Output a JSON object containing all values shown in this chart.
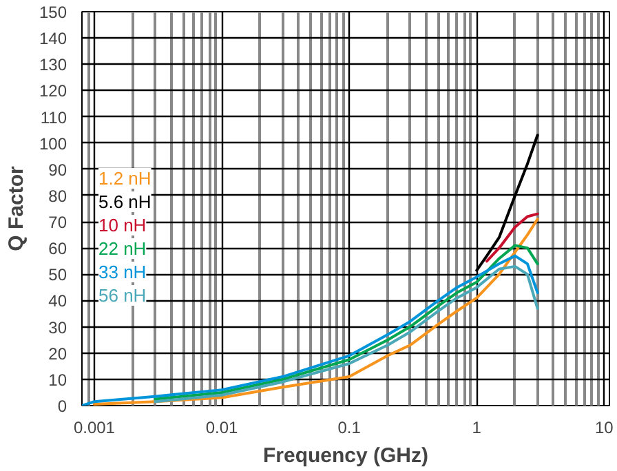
{
  "chart_data": {
    "type": "line",
    "xlabel": "Frequency (GHz)",
    "ylabel": "Q Factor",
    "log": "x",
    "grid": true,
    "legend": "left",
    "xlim": [
      0.0008,
      11
    ],
    "ylim": [
      0,
      150
    ],
    "xticks": [
      0.001,
      0.01,
      0.1,
      1,
      10
    ],
    "yticks": [
      0,
      10,
      20,
      30,
      40,
      50,
      60,
      70,
      80,
      90,
      100,
      110,
      120,
      130,
      140,
      150
    ],
    "x": [
      0.0008,
      0.001,
      0.003,
      0.01,
      0.03,
      0.1,
      0.2,
      0.3,
      0.5,
      0.7,
      1,
      1.5,
      2,
      2.5,
      3
    ],
    "series": [
      {
        "name": "1.2 nH",
        "color": "#f7941d",
        "x": [
          0.001,
          0.003,
          0.01,
          0.03,
          0.1,
          0.2,
          0.3,
          0.5,
          0.7,
          1,
          1.5,
          2.5,
          3
        ],
        "values": [
          0.5,
          1.5,
          3,
          7,
          11,
          19,
          23,
          31,
          36,
          41,
          50,
          65,
          71
        ]
      },
      {
        "name": "5.6 nH",
        "color": "#000000",
        "x": [
          1,
          1.2,
          1.5,
          2,
          2.5,
          3
        ],
        "values": [
          51.5,
          57,
          64,
          80,
          92,
          103
        ]
      },
      {
        "name": "10 nH",
        "color": "#c8102e",
        "x": [
          1.2,
          1.5,
          2,
          2.5,
          3
        ],
        "values": [
          55,
          60,
          68,
          72,
          73
        ]
      },
      {
        "name": "22 nH",
        "color": "#00a651",
        "x": [
          0.003,
          0.01,
          0.03,
          0.1,
          0.2,
          0.3,
          0.5,
          0.7,
          1,
          1.5,
          2,
          2.5,
          3
        ],
        "values": [
          2.5,
          5,
          10,
          17.5,
          25,
          30,
          38,
          43,
          47,
          56,
          61,
          60,
          54
        ]
      },
      {
        "name": "33 nH",
        "color": "#0095da",
        "values": [
          0,
          1.5,
          3.5,
          6,
          11,
          19,
          27,
          32,
          40,
          45,
          49,
          54,
          57,
          54,
          43
        ]
      },
      {
        "name": "56 nH",
        "color": "#4aa8b8",
        "x": [
          0.003,
          0.01,
          0.03,
          0.1,
          0.2,
          0.3,
          0.5,
          0.7,
          1,
          1.5,
          2,
          2.5,
          3
        ],
        "values": [
          1.5,
          4,
          9,
          16,
          23,
          28,
          36,
          41,
          45,
          52,
          53,
          50,
          37
        ]
      }
    ]
  }
}
